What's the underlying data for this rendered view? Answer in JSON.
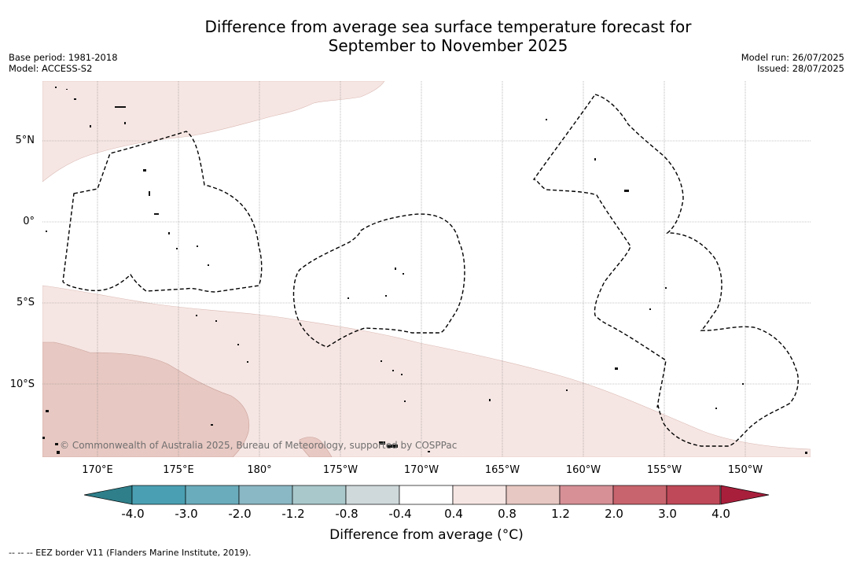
{
  "title_line1": "Difference from average sea surface temperature forecast for",
  "title_line2": "September to November 2025",
  "base_period": "Base period: 1981-2018",
  "model": "Model: ACCESS-S2",
  "model_run": "Model run: 26/07/2025",
  "issued": "Issued: 28/07/2025",
  "lat_labels": [
    "5°N",
    "0°",
    "5°S",
    "10°S"
  ],
  "lon_labels": [
    "170°E",
    "175°E",
    "180°",
    "175°W",
    "170°W",
    "165°W",
    "160°W",
    "155°W",
    "150°W"
  ],
  "colorbar": {
    "ticks": [
      "-4.0",
      "-3.0",
      "-2.0",
      "-1.2",
      "-0.8",
      "-0.4",
      "0.4",
      "0.8",
      "1.2",
      "2.0",
      "3.0",
      "4.0"
    ],
    "colors": [
      "#2e7f8a",
      "#4aa0b2",
      "#6aacbc",
      "#8ab8c4",
      "#a9c8cc",
      "#cfd9db",
      "#ffffff",
      "#f6e6e3",
      "#e8c8c2",
      "#d69096",
      "#c8646d",
      "#bf4958",
      "#a81f3c"
    ],
    "label": "Difference from average (°C)"
  },
  "copyright": "© Commonwealth of Australia 2025, Bureau of Meteorology, supported by COSPPac",
  "footnote": "--  --  -- EEZ border V11 (Flanders Marine Institute, 2019)."
}
